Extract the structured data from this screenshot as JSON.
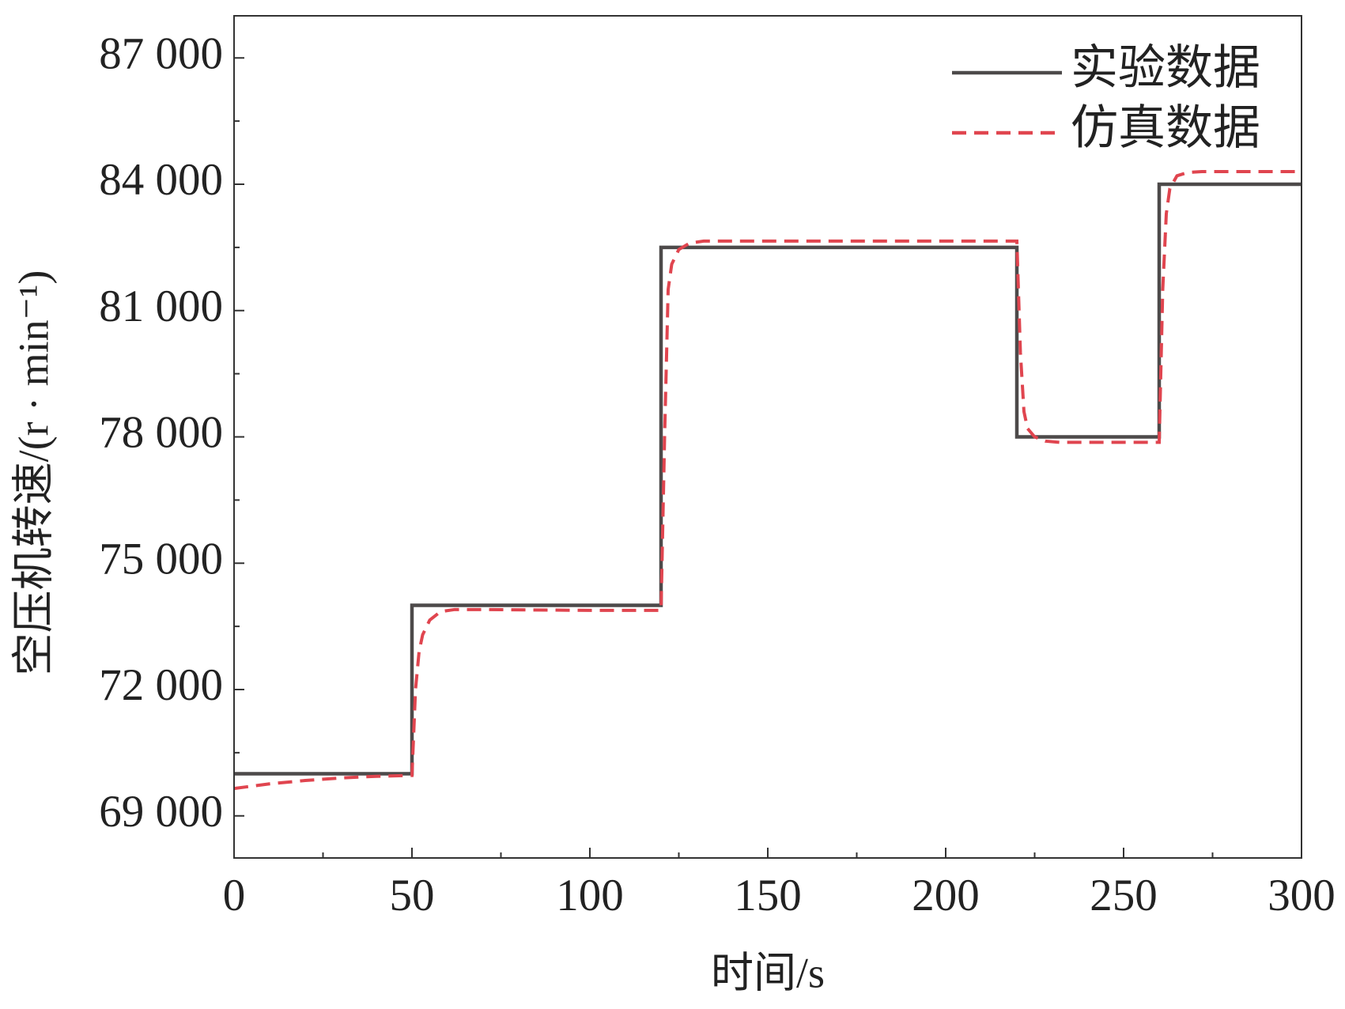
{
  "chart_data": {
    "type": "line",
    "xlabel": "时间/s",
    "ylabel": "空压机转速/(r · min⁻¹)",
    "xlim": [
      0,
      300
    ],
    "xticks": [
      0,
      50,
      100,
      150,
      200,
      250,
      300
    ],
    "xminorticks": [
      25,
      75,
      125,
      175,
      225,
      275
    ],
    "ylim": [
      68000,
      88000
    ],
    "yticks": [
      {
        "value": 69000,
        "label": "69 000"
      },
      {
        "value": 72000,
        "label": "72 000"
      },
      {
        "value": 75000,
        "label": "75 000"
      },
      {
        "value": 78000,
        "label": "78 000"
      },
      {
        "value": 81000,
        "label": "81 000"
      },
      {
        "value": 84000,
        "label": "84 000"
      },
      {
        "value": 87000,
        "label": "87 000"
      }
    ],
    "yminorticks": [
      70500,
      73500,
      76500,
      79500,
      82500,
      85500
    ],
    "legend": "upper right",
    "series": [
      {
        "name": "实验数据",
        "color": "#4d4a4a",
        "dash": "solid",
        "x": [
          0,
          50,
          50,
          120,
          120,
          220,
          220,
          260,
          260,
          300
        ],
        "values": [
          70000,
          70000,
          74000,
          74000,
          82500,
          82500,
          78000,
          78000,
          84000,
          84000
        ]
      },
      {
        "name": "仿真数据",
        "color": "#e0454f",
        "dash": "dashed",
        "x": [
          0,
          10,
          20,
          30,
          40,
          50,
          51,
          52,
          53,
          55,
          58,
          62,
          70,
          100,
          120,
          121,
          122,
          123,
          125,
          128,
          132,
          140,
          200,
          220,
          221,
          222,
          223,
          225,
          228,
          232,
          240,
          260,
          261,
          262,
          263,
          265,
          268,
          272,
          280,
          300
        ],
        "values": [
          69650,
          69760,
          69840,
          69900,
          69940,
          69960,
          72000,
          72900,
          73300,
          73650,
          73850,
          73900,
          73900,
          73880,
          73880,
          78000,
          81500,
          82100,
          82450,
          82600,
          82650,
          82650,
          82650,
          82650,
          80000,
          78600,
          78200,
          78000,
          77900,
          77870,
          77870,
          77870,
          81500,
          83300,
          83900,
          84200,
          84280,
          84300,
          84300,
          84300
        ]
      }
    ]
  }
}
